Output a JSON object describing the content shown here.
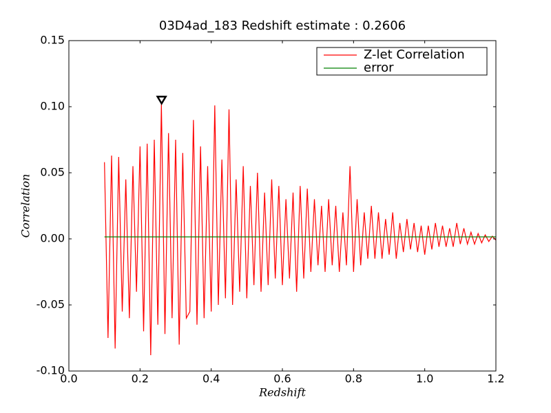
{
  "chart_data": {
    "type": "line",
    "title": "03D4ad_183 Redshift estimate : 0.2606",
    "x_label": "Redshift",
    "y_label": "Correlation",
    "legend": "upper right",
    "xlim": [
      0,
      1.2
    ],
    "ylim": [
      -0.1,
      0.15
    ],
    "xticks": [
      {
        "value": 0,
        "label": "0.0"
      },
      0.2,
      0.4,
      0.6,
      0.8,
      {
        "value": 1,
        "label": "1.0"
      },
      1.2
    ],
    "yticks": [
      {
        "value": -0.1,
        "label": "-0.10"
      },
      -0.05,
      {
        "value": 0,
        "label": "0.00"
      },
      0.05,
      {
        "value": 0.1,
        "label": "0.10"
      },
      0.15
    ],
    "marker": {
      "x": 0.2606,
      "y": 0.105
    },
    "series": [
      {
        "name": "Z-let Correlation",
        "color": "#ff0000",
        "x": [
          0.1,
          0.11,
          0.12,
          0.13,
          0.14,
          0.15,
          0.16,
          0.17,
          0.18,
          0.19,
          0.2,
          0.21,
          0.22,
          0.23,
          0.24,
          0.25,
          0.26,
          0.27,
          0.28,
          0.29,
          0.3,
          0.31,
          0.32,
          0.33,
          0.34,
          0.35,
          0.36,
          0.37,
          0.38,
          0.39,
          0.4,
          0.41,
          0.42,
          0.43,
          0.44,
          0.45,
          0.46,
          0.47,
          0.48,
          0.49,
          0.5,
          0.51,
          0.52,
          0.53,
          0.54,
          0.55,
          0.56,
          0.57,
          0.58,
          0.59,
          0.6,
          0.61,
          0.62,
          0.63,
          0.64,
          0.65,
          0.66,
          0.67,
          0.68,
          0.69,
          0.7,
          0.71,
          0.72,
          0.73,
          0.74,
          0.75,
          0.76,
          0.77,
          0.78,
          0.79,
          0.8,
          0.81,
          0.82,
          0.83,
          0.84,
          0.85,
          0.86,
          0.87,
          0.88,
          0.89,
          0.9,
          0.91,
          0.92,
          0.93,
          0.94,
          0.95,
          0.96,
          0.97,
          0.98,
          0.99,
          1.0,
          1.01,
          1.02,
          1.03,
          1.04,
          1.05,
          1.06,
          1.07,
          1.08,
          1.09,
          1.1,
          1.11,
          1.12,
          1.13,
          1.14,
          1.15,
          1.16,
          1.17,
          1.18,
          1.19,
          1.2
        ],
        "values": [
          0.058,
          -0.075,
          0.063,
          -0.083,
          0.062,
          -0.055,
          0.045,
          -0.06,
          0.055,
          -0.04,
          0.07,
          -0.07,
          0.072,
          -0.088,
          0.075,
          -0.065,
          0.102,
          -0.072,
          0.08,
          -0.06,
          0.075,
          -0.08,
          0.065,
          -0.06,
          -0.055,
          0.09,
          -0.065,
          0.07,
          -0.06,
          0.055,
          -0.055,
          0.101,
          -0.05,
          0.06,
          -0.045,
          0.098,
          -0.05,
          0.045,
          -0.04,
          0.055,
          -0.045,
          0.04,
          -0.035,
          0.05,
          -0.04,
          0.035,
          -0.035,
          0.045,
          -0.03,
          0.04,
          -0.035,
          0.03,
          -0.03,
          0.035,
          -0.04,
          0.04,
          -0.03,
          0.038,
          -0.025,
          0.03,
          -0.02,
          0.025,
          -0.025,
          0.03,
          -0.02,
          0.025,
          -0.025,
          0.02,
          -0.02,
          0.055,
          -0.025,
          0.03,
          -0.02,
          0.02,
          -0.015,
          0.025,
          -0.015,
          0.02,
          -0.015,
          0.015,
          -0.012,
          0.02,
          -0.015,
          0.012,
          -0.01,
          0.015,
          -0.008,
          0.012,
          -0.01,
          0.01,
          -0.012,
          0.01,
          -0.008,
          0.012,
          -0.006,
          0.01,
          -0.006,
          0.008,
          -0.006,
          0.012,
          -0.004,
          0.008,
          -0.004,
          0.005,
          -0.004,
          0.004,
          -0.003,
          0.003,
          -0.002,
          0.002,
          -0.001
        ]
      },
      {
        "name": "error",
        "color": "#008000",
        "x": [
          0.1,
          1.2
        ],
        "values": [
          0.0015,
          0.0015
        ]
      }
    ]
  }
}
